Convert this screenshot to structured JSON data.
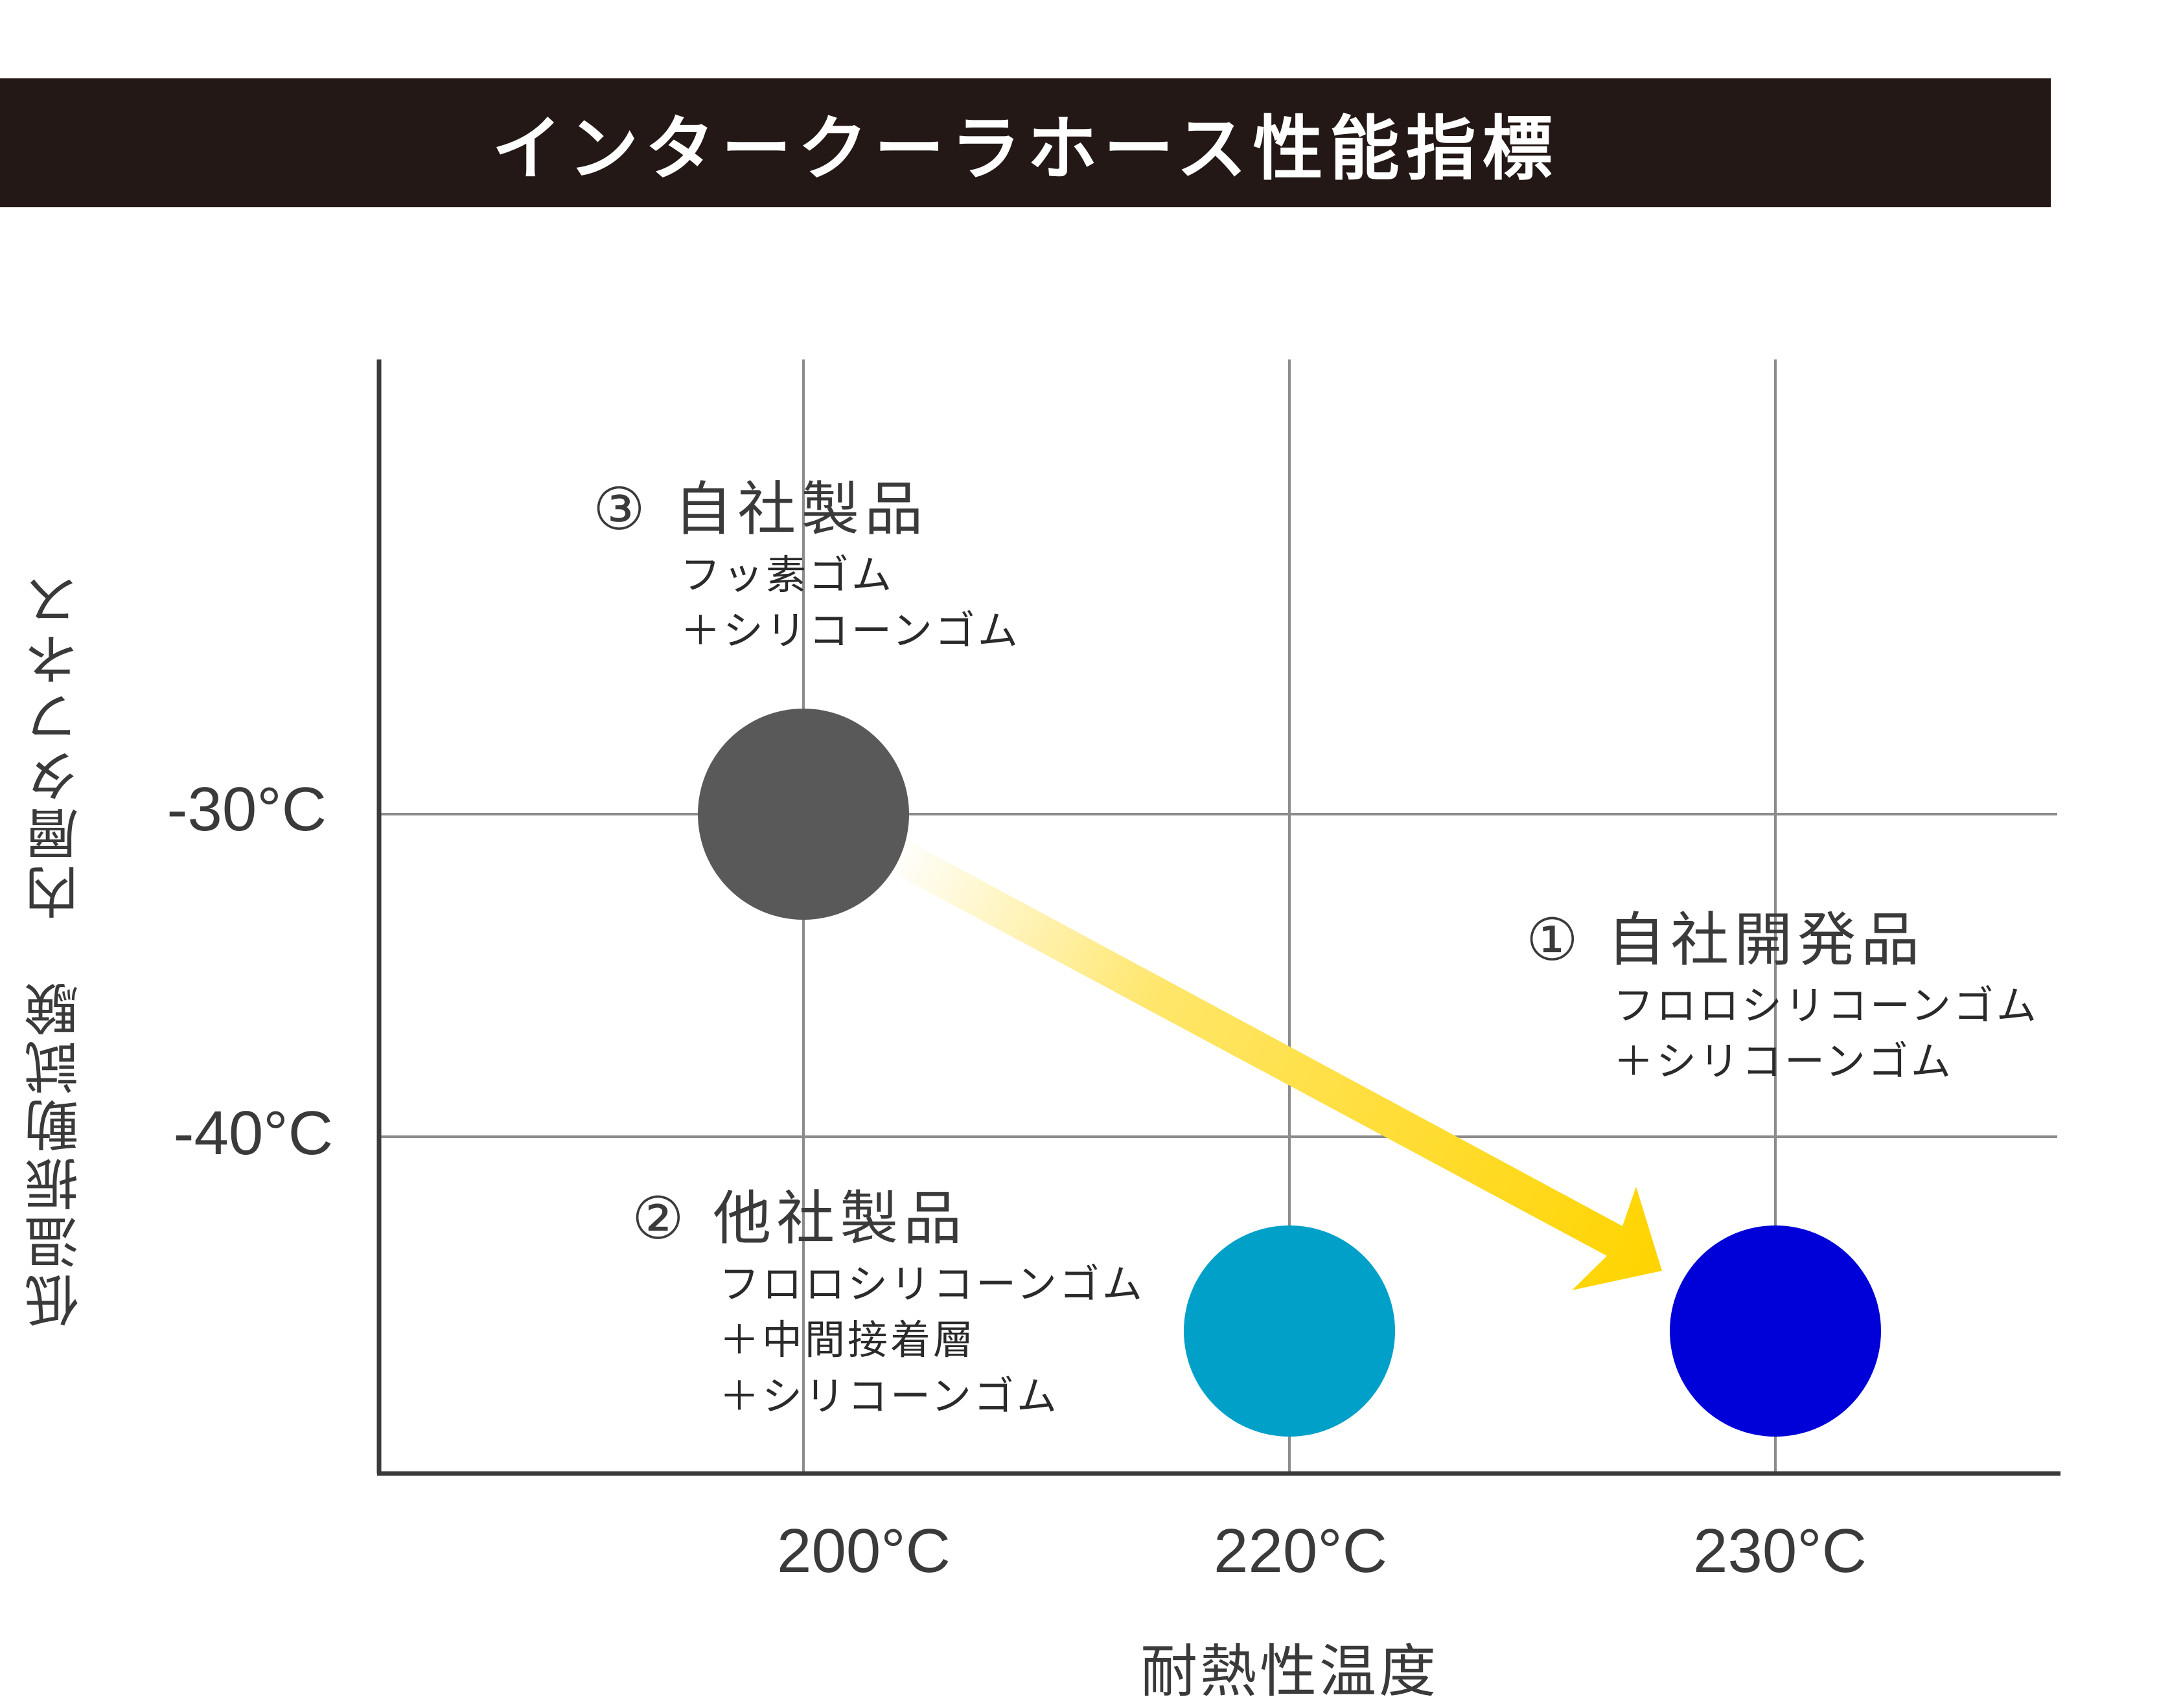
{
  "title": "インタークーラホース性能指標",
  "chart_data": {
    "type": "scatter",
    "xlabel": "耐熱性温度",
    "ylabel": "低温振動試験　内層タフネス",
    "x_ticks": [
      "200°C",
      "220°C",
      "230°C"
    ],
    "y_ticks": [
      "-30°C",
      "-40°C"
    ],
    "grid": true,
    "points": [
      {
        "id": "3",
        "title": "③ 自社製品",
        "lines": [
          "フッ素ゴム",
          "＋シリコーンゴム"
        ],
        "x": "200°C",
        "y": "-30°C",
        "color": "#5a5959"
      },
      {
        "id": "2",
        "title": "② 他社製品",
        "lines": [
          "フロロシリコーンゴム",
          "＋中間接着層",
          "＋シリコーンゴム"
        ],
        "x": "220°C",
        "y": "below -40°C",
        "color": "#00a0c8"
      },
      {
        "id": "1",
        "title": "① 自社開発品",
        "lines": [
          "フロロシリコーンゴム",
          "＋シリコーンゴム"
        ],
        "x": "230°C",
        "y": "below -40°C",
        "color": "#0000d8"
      }
    ],
    "arrow": {
      "from": "3",
      "to": "1",
      "color": "#ffd400"
    }
  }
}
